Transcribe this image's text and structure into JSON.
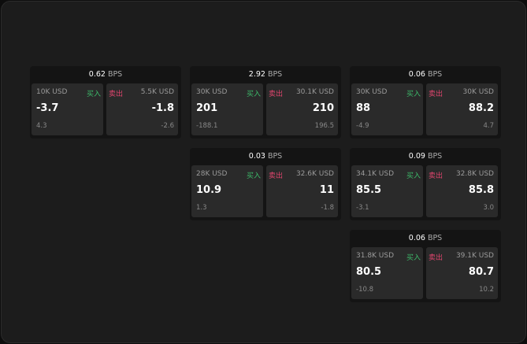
{
  "unit": "BPS",
  "buy_label": "买入",
  "sell_label": "卖出",
  "colors": {
    "buy": "#3dbb6a",
    "sell": "#e0456e",
    "background": "#1c1c1c"
  },
  "cards": [
    {
      "spread": "0.62",
      "bid_qty": "10K USD",
      "bid": "-3.7",
      "bid_change": "4.3",
      "ask_qty": "5.5K USD",
      "ask": "-1.8",
      "ask_change": "-2.6"
    },
    {
      "spread": "2.92",
      "bid_qty": "30K USD",
      "bid": "201",
      "bid_change": "-188.1",
      "ask_qty": "30.1K USD",
      "ask": "210",
      "ask_change": "196.5"
    },
    {
      "spread": "0.06",
      "bid_qty": "30K USD",
      "bid": "88",
      "bid_change": "-4.9",
      "ask_qty": "30K USD",
      "ask": "88.2",
      "ask_change": "4.7"
    },
    {
      "spread": "0.03",
      "bid_qty": "28K USD",
      "bid": "10.9",
      "bid_change": "1.3",
      "ask_qty": "32.6K USD",
      "ask": "11",
      "ask_change": "-1.8"
    },
    {
      "spread": "0.09",
      "bid_qty": "34.1K USD",
      "bid": "85.5",
      "bid_change": "-3.1",
      "ask_qty": "32.8K USD",
      "ask": "85.8",
      "ask_change": "3.0"
    },
    {
      "spread": "0.06",
      "bid_qty": "31.8K USD",
      "bid": "80.5",
      "bid_change": "-10.8",
      "ask_qty": "39.1K USD",
      "ask": "80.7",
      "ask_change": "10.2"
    }
  ]
}
